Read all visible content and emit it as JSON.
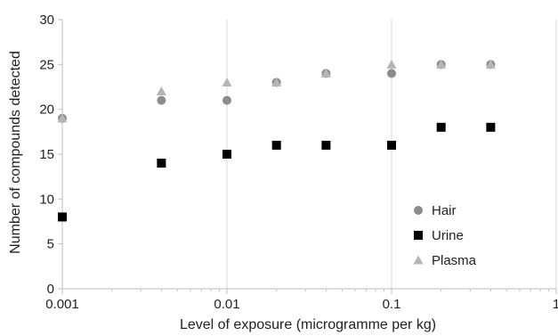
{
  "chart_data": {
    "type": "scatter",
    "xlabel": "Level of exposure (microgramme per kg)",
    "ylabel": "Number of compounds detected",
    "xscale": "log",
    "xlim": [
      0.001,
      1
    ],
    "ylim": [
      0,
      30
    ],
    "xticks": [
      0.001,
      0.01,
      0.1,
      1
    ],
    "xtick_labels": [
      "0.001",
      "0.01",
      "0.1",
      "1"
    ],
    "yticks": [
      0,
      5,
      10,
      15,
      20,
      25,
      30
    ],
    "ytick_labels": [
      "0",
      "5",
      "10",
      "15",
      "20",
      "25",
      "30"
    ],
    "grid": "vertical",
    "legend_position": "bottom-right",
    "series": [
      {
        "name": "Hair",
        "marker": "circle",
        "color": "#8c8c8c",
        "x": [
          0.001,
          0.004,
          0.01,
          0.02,
          0.04,
          0.1,
          0.2,
          0.4
        ],
        "y": [
          19,
          21,
          21,
          23,
          24,
          24,
          25,
          25
        ]
      },
      {
        "name": "Urine",
        "marker": "square",
        "color": "#000000",
        "x": [
          0.001,
          0.004,
          0.01,
          0.02,
          0.04,
          0.1,
          0.2,
          0.4
        ],
        "y": [
          8,
          14,
          15,
          16,
          16,
          16,
          18,
          18
        ]
      },
      {
        "name": "Plasma",
        "marker": "triangle",
        "color": "#b5b5b5",
        "x": [
          0.001,
          0.004,
          0.01,
          0.02,
          0.04,
          0.1,
          0.2,
          0.4
        ],
        "y": [
          19,
          22,
          23,
          23,
          24,
          25,
          25,
          25
        ]
      }
    ]
  }
}
